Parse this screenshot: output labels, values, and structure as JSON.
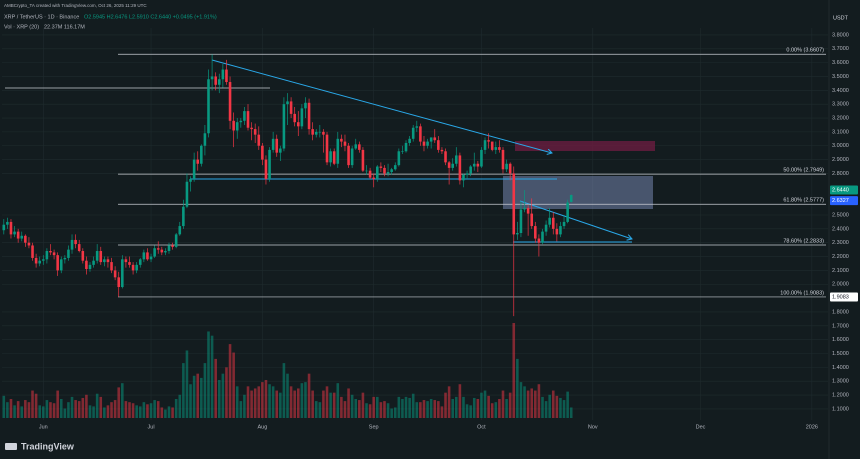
{
  "chart_data": {
    "type": "candlestick",
    "credit": "AMBCrypto_TA created with TradingView.com, Oct 26, 2025 11:29 UTC",
    "title": "XRP / TetherUS · 1D · Binance",
    "ohlc_text": "O2.5945 H2.6476 L2.5910 C2.6440 +0.0495 (+1.91%)",
    "volume_title": "Vol · XRP (20)",
    "volume_text": "22.37M 116.17M",
    "currency": "USDT",
    "logo": "TradingView",
    "up_color": "#089981",
    "down_color": "#f23645",
    "grid": true,
    "xlim": [
      -0.5,
      229.5
    ],
    "xticks": [
      {
        "value": 11,
        "label": "Jun"
      },
      {
        "value": 41,
        "label": "Jul"
      },
      {
        "value": 72,
        "label": "Aug"
      },
      {
        "value": 103,
        "label": "Sep"
      },
      {
        "value": 133,
        "label": "Oct"
      },
      {
        "value": 164,
        "label": "Nov"
      },
      {
        "value": 194,
        "label": "Dec"
      },
      {
        "value": 225,
        "label": "2026"
      }
    ],
    "ylim": [
      1.02,
      3.85
    ],
    "yticks": [
      {
        "value": 1.1,
        "label": "1.1000"
      },
      {
        "value": 1.2,
        "label": "1.2000"
      },
      {
        "value": 1.3,
        "label": "1.3000"
      },
      {
        "value": 1.4,
        "label": "1.4000"
      },
      {
        "value": 1.5,
        "label": "1.5000"
      },
      {
        "value": 1.6,
        "label": "1.6000"
      },
      {
        "value": 1.7,
        "label": "1.7000"
      },
      {
        "value": 1.8,
        "label": "1.8000"
      },
      {
        "value": 2.0,
        "label": "2.0000"
      },
      {
        "value": 2.1,
        "label": "2.1000"
      },
      {
        "value": 2.2,
        "label": "2.2000"
      },
      {
        "value": 2.3,
        "label": "2.3000"
      },
      {
        "value": 2.4,
        "label": "2.4000"
      },
      {
        "value": 2.5,
        "label": "2.5000"
      },
      {
        "value": 2.8,
        "label": "2.8000"
      },
      {
        "value": 2.9,
        "label": "2.9000"
      },
      {
        "value": 3.0,
        "label": "3.0000"
      },
      {
        "value": 3.1,
        "label": "3.1000"
      },
      {
        "value": 3.2,
        "label": "3.2000"
      },
      {
        "value": 3.3,
        "label": "3.3000"
      },
      {
        "value": 3.4,
        "label": "3.4000"
      },
      {
        "value": 3.5,
        "label": "3.5000"
      },
      {
        "value": 3.6,
        "label": "3.6000"
      },
      {
        "value": 3.7,
        "label": "3.7000"
      },
      {
        "value": 3.8,
        "label": "3.8000"
      }
    ],
    "fib_levels": [
      {
        "value": 3.6607,
        "label": "0.00% (3.6607)"
      },
      {
        "value": 2.7949,
        "label": "50.00% (2.7949)"
      },
      {
        "value": 2.5777,
        "label": "61.80% (2.5777)"
      },
      {
        "value": 2.2833,
        "label": "78.60% (2.2833)"
      },
      {
        "value": 1.9083,
        "label": "100.00% (1.9083)"
      }
    ],
    "price_labels": [
      {
        "value": 2.644,
        "label": "2.6440",
        "color": "#089981"
      },
      {
        "value": 2.6327,
        "label": "2.6327",
        "color": "#2962ff"
      },
      {
        "value": 1.9083,
        "label": "1.9083",
        "color": "#ffffff"
      }
    ],
    "candles": [
      [
        2.39,
        2.47,
        2.36,
        2.43
      ],
      [
        2.43,
        2.48,
        2.4,
        2.45
      ],
      [
        2.45,
        2.47,
        2.33,
        2.36
      ],
      [
        2.36,
        2.42,
        2.34,
        2.38
      ],
      [
        2.38,
        2.4,
        2.3,
        2.33
      ],
      [
        2.33,
        2.38,
        2.31,
        2.35
      ],
      [
        2.35,
        2.36,
        2.27,
        2.3
      ],
      [
        2.3,
        2.34,
        2.26,
        2.28
      ],
      [
        2.28,
        2.3,
        2.17,
        2.19
      ],
      [
        2.19,
        2.22,
        2.12,
        2.15
      ],
      [
        2.15,
        2.2,
        2.13,
        2.17
      ],
      [
        2.17,
        2.21,
        2.14,
        2.18
      ],
      [
        2.18,
        2.26,
        2.15,
        2.24
      ],
      [
        2.24,
        2.29,
        2.21,
        2.23
      ],
      [
        2.23,
        2.25,
        2.18,
        2.21
      ],
      [
        2.21,
        2.23,
        2.06,
        2.1
      ],
      [
        2.1,
        2.2,
        2.08,
        2.18
      ],
      [
        2.18,
        2.21,
        2.15,
        2.19
      ],
      [
        2.19,
        2.28,
        2.17,
        2.25
      ],
      [
        2.25,
        2.36,
        2.22,
        2.32
      ],
      [
        2.32,
        2.36,
        2.26,
        2.29
      ],
      [
        2.29,
        2.32,
        2.23,
        2.24
      ],
      [
        2.24,
        2.26,
        2.15,
        2.17
      ],
      [
        2.17,
        2.2,
        2.07,
        2.11
      ],
      [
        2.11,
        2.16,
        2.09,
        2.14
      ],
      [
        2.14,
        2.2,
        2.12,
        2.17
      ],
      [
        2.17,
        2.29,
        2.15,
        2.24
      ],
      [
        2.24,
        2.27,
        2.14,
        2.16
      ],
      [
        2.16,
        2.2,
        2.13,
        2.18
      ],
      [
        2.18,
        2.2,
        2.12,
        2.16
      ],
      [
        2.16,
        2.19,
        2.08,
        2.1
      ],
      [
        2.1,
        2.13,
        2.03,
        2.05
      ],
      [
        2.05,
        2.09,
        1.91,
        1.98
      ],
      [
        1.98,
        2.21,
        1.97,
        2.18
      ],
      [
        2.18,
        2.2,
        2.12,
        2.16
      ],
      [
        2.16,
        2.2,
        2.12,
        2.14
      ],
      [
        2.14,
        2.16,
        2.07,
        2.1
      ],
      [
        2.1,
        2.16,
        2.08,
        2.14
      ],
      [
        2.14,
        2.19,
        2.12,
        2.18
      ],
      [
        2.18,
        2.25,
        2.16,
        2.23
      ],
      [
        2.23,
        2.26,
        2.17,
        2.18
      ],
      [
        2.18,
        2.22,
        2.16,
        2.2
      ],
      [
        2.2,
        2.28,
        2.19,
        2.26
      ],
      [
        2.26,
        2.31,
        2.22,
        2.25
      ],
      [
        2.25,
        2.27,
        2.21,
        2.23
      ],
      [
        2.23,
        2.26,
        2.21,
        2.24
      ],
      [
        2.24,
        2.3,
        2.22,
        2.28
      ],
      [
        2.28,
        2.3,
        2.25,
        2.27
      ],
      [
        2.27,
        2.37,
        2.26,
        2.36
      ],
      [
        2.36,
        2.45,
        2.35,
        2.42
      ],
      [
        2.42,
        2.61,
        2.4,
        2.56
      ],
      [
        2.56,
        2.8,
        2.55,
        2.74
      ],
      [
        2.74,
        2.78,
        2.67,
        2.76
      ],
      [
        2.76,
        2.95,
        2.74,
        2.9
      ],
      [
        2.9,
        2.96,
        2.82,
        2.87
      ],
      [
        2.87,
        3.01,
        2.85,
        3.0
      ],
      [
        3.0,
        3.15,
        2.93,
        3.09
      ],
      [
        3.09,
        3.55,
        3.06,
        3.48
      ],
      [
        3.48,
        3.66,
        3.4,
        3.5
      ],
      [
        3.5,
        3.53,
        3.4,
        3.44
      ],
      [
        3.44,
        3.52,
        3.38,
        3.48
      ],
      [
        3.48,
        3.59,
        3.42,
        3.55
      ],
      [
        3.55,
        3.62,
        3.44,
        3.46
      ],
      [
        3.46,
        3.5,
        3.12,
        3.18
      ],
      [
        3.18,
        3.24,
        2.99,
        3.11
      ],
      [
        3.11,
        3.2,
        3.05,
        3.17
      ],
      [
        3.17,
        3.2,
        3.13,
        3.18
      ],
      [
        3.18,
        3.28,
        3.15,
        3.25
      ],
      [
        3.25,
        3.3,
        3.11,
        3.13
      ],
      [
        3.13,
        3.17,
        3.04,
        3.12
      ],
      [
        3.12,
        3.16,
        3.02,
        3.08
      ],
      [
        3.08,
        3.14,
        2.97,
        3.0
      ],
      [
        3.0,
        3.02,
        2.86,
        2.9
      ],
      [
        2.9,
        2.93,
        2.72,
        2.76
      ],
      [
        2.76,
        2.99,
        2.74,
        2.97
      ],
      [
        2.97,
        3.1,
        2.95,
        3.05
      ],
      [
        3.05,
        3.08,
        2.92,
        2.95
      ],
      [
        2.95,
        3.0,
        2.89,
        2.98
      ],
      [
        2.98,
        3.35,
        2.96,
        3.3
      ],
      [
        3.3,
        3.38,
        3.15,
        3.32
      ],
      [
        3.32,
        3.35,
        3.2,
        3.23
      ],
      [
        3.23,
        3.28,
        3.14,
        3.17
      ],
      [
        3.17,
        3.25,
        3.07,
        3.14
      ],
      [
        3.14,
        3.3,
        3.12,
        3.27
      ],
      [
        3.27,
        3.35,
        3.2,
        3.31
      ],
      [
        3.31,
        3.34,
        3.08,
        3.12
      ],
      [
        3.12,
        3.17,
        3.04,
        3.08
      ],
      [
        3.08,
        3.12,
        3.06,
        3.1
      ],
      [
        3.1,
        3.15,
        3.06,
        3.1
      ],
      [
        3.1,
        3.12,
        2.95,
        3.08
      ],
      [
        3.08,
        3.1,
        2.86,
        2.88
      ],
      [
        2.88,
        2.98,
        2.85,
        2.96
      ],
      [
        2.96,
        2.98,
        2.86,
        2.87
      ],
      [
        2.87,
        3.1,
        2.84,
        3.05
      ],
      [
        3.05,
        3.08,
        2.99,
        3.03
      ],
      [
        3.03,
        3.08,
        2.96,
        3.0
      ],
      [
        3.0,
        3.02,
        2.84,
        2.86
      ],
      [
        2.86,
        3.0,
        2.84,
        2.98
      ],
      [
        2.98,
        3.05,
        2.97,
        3.01
      ],
      [
        3.01,
        3.03,
        2.95,
        2.97
      ],
      [
        2.97,
        2.99,
        2.81,
        2.82
      ],
      [
        2.82,
        2.86,
        2.79,
        2.82
      ],
      [
        2.82,
        2.84,
        2.76,
        2.77
      ],
      [
        2.77,
        2.8,
        2.7,
        2.76
      ],
      [
        2.76,
        2.86,
        2.74,
        2.85
      ],
      [
        2.85,
        2.88,
        2.81,
        2.84
      ],
      [
        2.84,
        2.86,
        2.78,
        2.8
      ],
      [
        2.8,
        2.87,
        2.78,
        2.81
      ],
      [
        2.81,
        2.84,
        2.79,
        2.83
      ],
      [
        2.83,
        2.88,
        2.82,
        2.86
      ],
      [
        2.86,
        2.98,
        2.85,
        2.96
      ],
      [
        2.96,
        3.0,
        2.94,
        2.96
      ],
      [
        2.96,
        3.04,
        2.95,
        3.02
      ],
      [
        3.02,
        3.07,
        3.0,
        3.05
      ],
      [
        3.05,
        3.15,
        3.03,
        3.13
      ],
      [
        3.13,
        3.18,
        3.1,
        3.14
      ],
      [
        3.14,
        3.16,
        3.0,
        3.03
      ],
      [
        3.03,
        3.07,
        2.96,
        3.0
      ],
      [
        3.0,
        3.05,
        2.98,
        3.03
      ],
      [
        3.03,
        3.06,
        2.98,
        3.06
      ],
      [
        3.06,
        3.12,
        3.02,
        3.04
      ],
      [
        3.04,
        3.07,
        2.95,
        2.97
      ],
      [
        2.97,
        2.99,
        2.94,
        2.96
      ],
      [
        2.96,
        2.98,
        2.86,
        2.88
      ],
      [
        2.88,
        2.89,
        2.72,
        2.84
      ],
      [
        2.84,
        2.91,
        2.82,
        2.87
      ],
      [
        2.87,
        2.99,
        2.85,
        2.93
      ],
      [
        2.93,
        2.95,
        2.72,
        2.75
      ],
      [
        2.75,
        2.8,
        2.7,
        2.79
      ],
      [
        2.79,
        2.82,
        2.76,
        2.8
      ],
      [
        2.8,
        2.86,
        2.78,
        2.85
      ],
      [
        2.85,
        2.95,
        2.82,
        2.87
      ],
      [
        2.87,
        2.89,
        2.81,
        2.85
      ],
      [
        2.85,
        2.99,
        2.84,
        2.97
      ],
      [
        2.97,
        3.06,
        2.94,
        3.04
      ],
      [
        3.04,
        3.09,
        2.98,
        3.03
      ],
      [
        3.03,
        3.03,
        2.96,
        2.97
      ],
      [
        2.97,
        3.03,
        2.94,
        2.99
      ],
      [
        2.99,
        3.04,
        2.95,
        2.97
      ],
      [
        2.97,
        2.99,
        2.8,
        2.83
      ],
      [
        2.83,
        2.9,
        2.81,
        2.87
      ],
      [
        2.87,
        2.88,
        2.75,
        2.8
      ],
      [
        2.8,
        2.85,
        1.77,
        2.36
      ],
      [
        2.36,
        2.45,
        2.32,
        2.37
      ],
      [
        2.37,
        2.6,
        2.34,
        2.54
      ],
      [
        2.54,
        2.68,
        2.52,
        2.55
      ],
      [
        2.55,
        2.57,
        2.35,
        2.51
      ],
      [
        2.51,
        2.62,
        2.4,
        2.42
      ],
      [
        2.42,
        2.45,
        2.3,
        2.33
      ],
      [
        2.33,
        2.36,
        2.2,
        2.3
      ],
      [
        2.3,
        2.4,
        2.29,
        2.38
      ],
      [
        2.38,
        2.46,
        2.35,
        2.43
      ],
      [
        2.43,
        2.55,
        2.41,
        2.48
      ],
      [
        2.48,
        2.52,
        2.36,
        2.4
      ],
      [
        2.4,
        2.44,
        2.31,
        2.36
      ],
      [
        2.36,
        2.45,
        2.34,
        2.42
      ],
      [
        2.42,
        2.5,
        2.4,
        2.45
      ],
      [
        2.45,
        2.61,
        2.44,
        2.59
      ],
      [
        2.5945,
        2.6476,
        2.591,
        2.644
      ]
    ],
    "volume": [
      210,
      150,
      180,
      120,
      160,
      110,
      170,
      150,
      260,
      230,
      120,
      110,
      170,
      150,
      140,
      260,
      180,
      90,
      150,
      200,
      170,
      160,
      190,
      220,
      120,
      110,
      230,
      200,
      100,
      120,
      150,
      170,
      290,
      330,
      160,
      150,
      140,
      120,
      110,
      150,
      130,
      140,
      170,
      160,
      100,
      80,
      110,
      100,
      180,
      220,
      520,
      640,
      320,
      400,
      420,
      380,
      520,
      820,
      780,
      560,
      360,
      420,
      480,
      700,
      620,
      300,
      160,
      220,
      300,
      260,
      280,
      300,
      340,
      360,
      320,
      300,
      260,
      240,
      520,
      420,
      300,
      260,
      280,
      330,
      340,
      420,
      260,
      160,
      150,
      260,
      300,
      240,
      240,
      330,
      200,
      160,
      280,
      220,
      180,
      170,
      240,
      140,
      130,
      200,
      200,
      150,
      160,
      140,
      90,
      100,
      200,
      180,
      200,
      190,
      230,
      150,
      150,
      170,
      160,
      180,
      170,
      160,
      110,
      240,
      300,
      180,
      200,
      320,
      200,
      130,
      120,
      190,
      180,
      240,
      260,
      210,
      140,
      150,
      180,
      260,
      180,
      240,
      900,
      560,
      340,
      300,
      260,
      280,
      260,
      320,
      200,
      160,
      220,
      260,
      210,
      190,
      170,
      250,
      100
    ]
  }
}
